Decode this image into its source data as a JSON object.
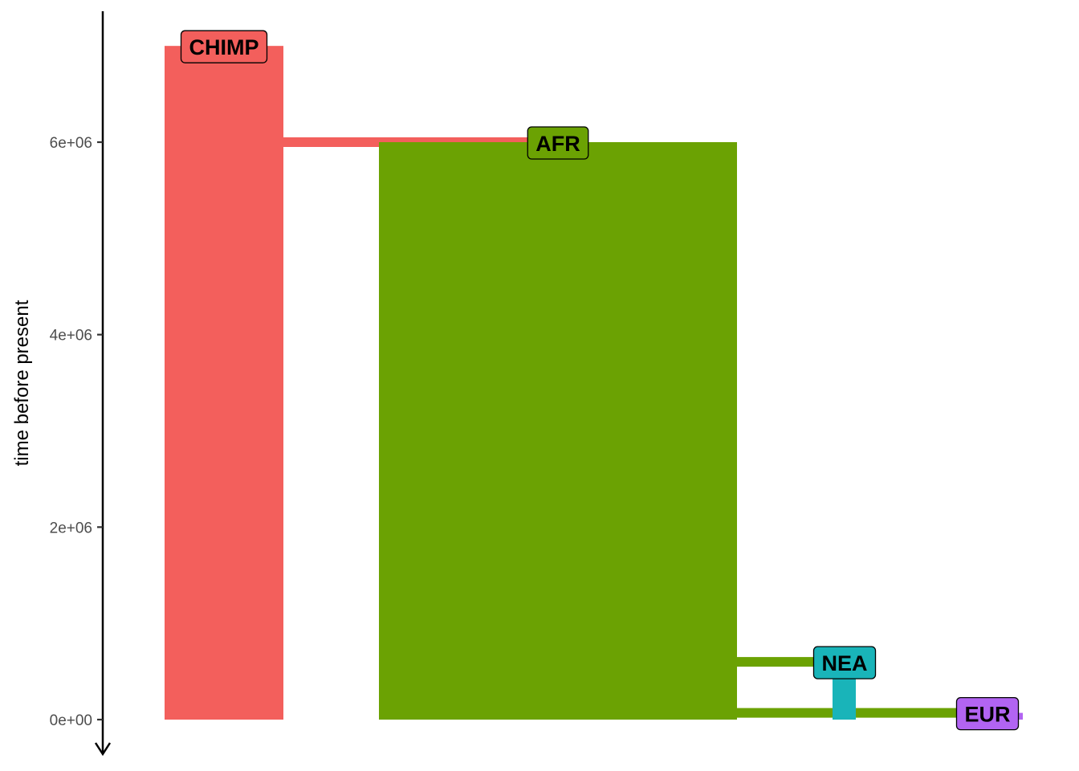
{
  "chart_data": {
    "type": "other",
    "ylabel": "time before present",
    "ylim": [
      0,
      7000000
    ],
    "y_ticks": [
      {
        "value": 0,
        "label": "0e+00"
      },
      {
        "value": 2000000,
        "label": "2e+06"
      },
      {
        "value": 4000000,
        "label": "4e+06"
      },
      {
        "value": 6000000,
        "label": "6e+06"
      }
    ],
    "populations": [
      {
        "name": "CHIMP",
        "color": "#F35F5C",
        "time_start": 7000000,
        "time_end": 0
      },
      {
        "name": "AFR",
        "color": "#6BA203",
        "time_start": 6000000,
        "time_end": 0,
        "parent": "CHIMP",
        "split_time": 6000000
      },
      {
        "name": "NEA",
        "color": "#19B4B9",
        "time_start": 600000,
        "time_end": 0,
        "parent": "AFR",
        "split_time": 600000
      },
      {
        "name": "EUR",
        "color": "#B264F2",
        "time_start": 70000,
        "time_end": 0,
        "parent": "AFR",
        "split_time": 70000
      }
    ],
    "grid": false,
    "legend": "none"
  }
}
